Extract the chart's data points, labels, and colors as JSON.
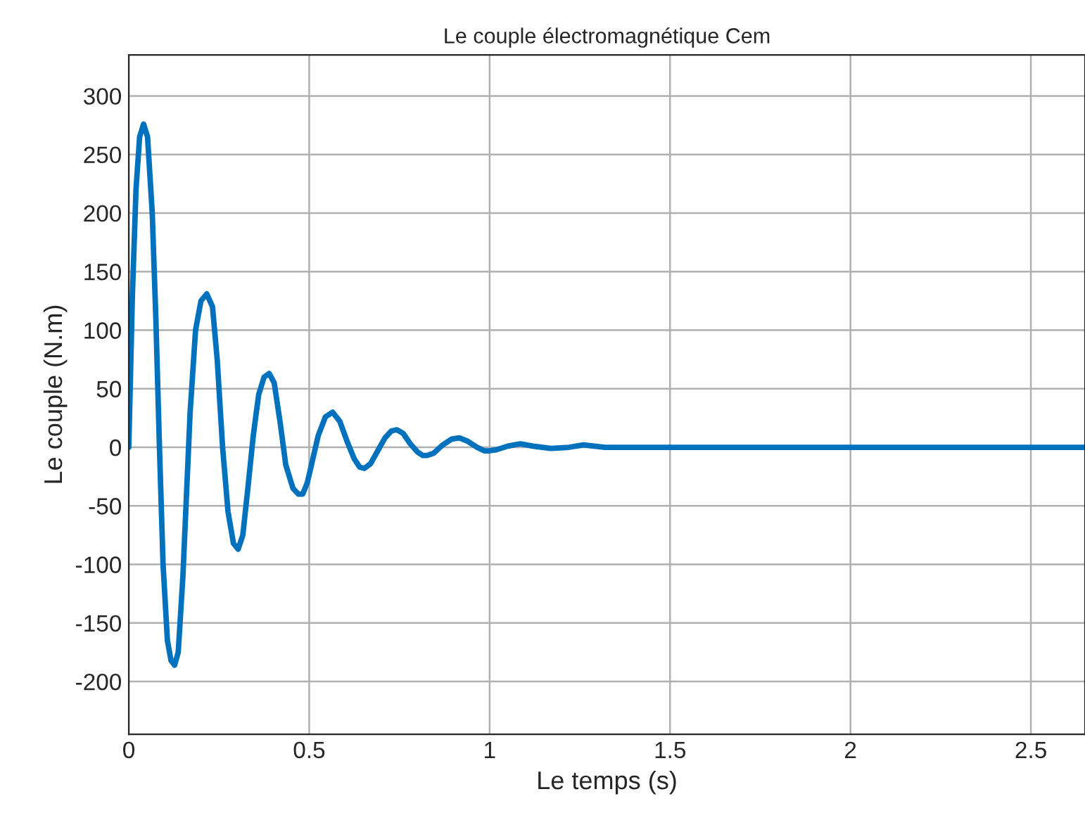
{
  "chart_data": {
    "type": "line",
    "title": "Le couple électromagnétique Cem",
    "xlabel": "Le temps (s)",
    "ylabel": "Le couple (N.m)",
    "xlim": [
      0,
      2.65
    ],
    "xticks": [
      0,
      0.5,
      1,
      1.5,
      2,
      2.5
    ],
    "ylim": [
      -245,
      335
    ],
    "yticks": [
      -200,
      -150,
      -100,
      -50,
      0,
      50,
      100,
      150,
      200,
      250,
      300
    ],
    "grid": true,
    "line_style": "solid",
    "series": [
      {
        "color": "#0072bd",
        "x": [
          0,
          0.01,
          0.02,
          0.03,
          0.041,
          0.052,
          0.065,
          0.075,
          0.085,
          0.095,
          0.107,
          0.117,
          0.127,
          0.137,
          0.15,
          0.16,
          0.17,
          0.185,
          0.2,
          0.216,
          0.232,
          0.245,
          0.26,
          0.275,
          0.29,
          0.303,
          0.316,
          0.33,
          0.345,
          0.36,
          0.375,
          0.389,
          0.403,
          0.42,
          0.435,
          0.455,
          0.47,
          0.482,
          0.495,
          0.51,
          0.525,
          0.545,
          0.565,
          0.585,
          0.605,
          0.625,
          0.64,
          0.653,
          0.67,
          0.69,
          0.71,
          0.728,
          0.743,
          0.76,
          0.78,
          0.8,
          0.815,
          0.827,
          0.845,
          0.87,
          0.895,
          0.916,
          0.94,
          0.965,
          0.985,
          1.0,
          1.02,
          1.05,
          1.085,
          1.12,
          1.17,
          1.22,
          1.26,
          1.32,
          1.4,
          1.5,
          1.7,
          2.0,
          2.3,
          2.65
        ],
        "values": [
          0,
          130,
          220,
          265,
          276,
          265,
          200,
          110,
          0,
          -100,
          -165,
          -182,
          -186,
          -175,
          -110,
          -40,
          30,
          100,
          125,
          131,
          120,
          75,
          0,
          -55,
          -82,
          -87,
          -75,
          -35,
          10,
          45,
          60,
          63,
          55,
          20,
          -15,
          -35,
          -40,
          -40,
          -30,
          -10,
          10,
          26,
          30,
          22,
          5,
          -10,
          -17,
          -18,
          -14,
          -3,
          8,
          14,
          15,
          12,
          3,
          -4,
          -7,
          -7,
          -5,
          2,
          7,
          8,
          5,
          0,
          -3,
          -3,
          -2,
          1,
          3,
          1,
          -1,
          0,
          2,
          0,
          0,
          0,
          0,
          0,
          0,
          0
        ]
      }
    ]
  }
}
